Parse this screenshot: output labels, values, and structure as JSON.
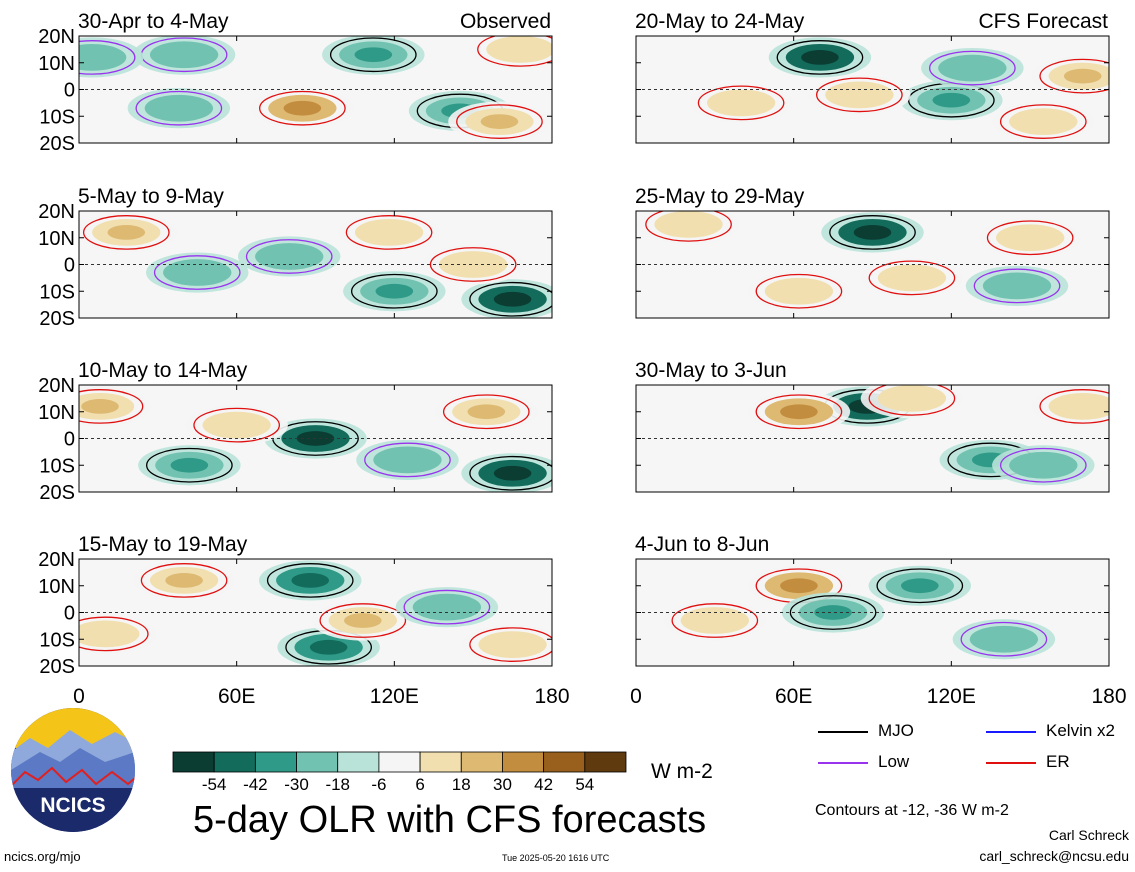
{
  "figure": {
    "title": "5-day OLR with CFS forecasts",
    "website": "ncics.org/mjo",
    "timestamp": "Tue 2025-05-20 1616 UTC",
    "author": "Carl Schreck",
    "email": "carl_schreck@ncsu.edu",
    "logo_text": "NCICS",
    "column_labels": {
      "observed": "Observed",
      "forecast": "CFS Forecast"
    }
  },
  "colorbar": {
    "units": "W m-2",
    "tick_labels": [
      "-54",
      "-42",
      "-30",
      "-18",
      "-6",
      "6",
      "18",
      "30",
      "42",
      "54"
    ],
    "colors": [
      "#0b3d33",
      "#136b5c",
      "#2e9a87",
      "#72c2b1",
      "#b9e3d9",
      "#f5f5f5",
      "#f1dfb0",
      "#ddb972",
      "#c38d3f",
      "#98601c",
      "#5e3a0e"
    ]
  },
  "legend": {
    "items": [
      {
        "label": "MJO",
        "color": "#000000"
      },
      {
        "label": "Kelvin x2",
        "color": "#1a1aff"
      },
      {
        "label": "Low",
        "color": "#9933ee"
      },
      {
        "label": "ER",
        "color": "#e01010"
      }
    ],
    "contour_note": "Contours at -12, -36 W m-2"
  },
  "chart_data": [
    {
      "type": "heatmap",
      "title": "30-Apr to 4-May",
      "label": "Observed",
      "x_ticks": [
        "0",
        "60E",
        "120E",
        "180"
      ],
      "y_ticks": [
        "20N",
        "10N",
        "0",
        "10S",
        "20S"
      ],
      "xlim": [
        0,
        180
      ],
      "ylim": [
        -20,
        20
      ],
      "anomalies": [
        {
          "lon": 85,
          "lat": -7,
          "value": 42
        },
        {
          "lon": 145,
          "lat": -8,
          "value": -36
        },
        {
          "lon": 112,
          "lat": 13,
          "value": -30
        },
        {
          "lon": 40,
          "lat": 13,
          "value": -18
        },
        {
          "lon": 38,
          "lat": -7,
          "value": -18
        },
        {
          "lon": 160,
          "lat": -12,
          "value": 30
        },
        {
          "lon": 168,
          "lat": 15,
          "value": 18
        },
        {
          "lon": 5,
          "lat": 12,
          "value": -18
        }
      ]
    },
    {
      "type": "heatmap",
      "title": "5-May to 9-May",
      "x_ticks": [
        "0",
        "60E",
        "120E",
        "180"
      ],
      "y_ticks": [
        "20N",
        "10N",
        "0",
        "10S",
        "20S"
      ],
      "xlim": [
        0,
        180
      ],
      "ylim": [
        -20,
        20
      ],
      "anomalies": [
        {
          "lon": 18,
          "lat": 12,
          "value": 30
        },
        {
          "lon": 165,
          "lat": -13,
          "value": -54
        },
        {
          "lon": 120,
          "lat": -10,
          "value": -30
        },
        {
          "lon": 80,
          "lat": 3,
          "value": -18
        },
        {
          "lon": 45,
          "lat": -3,
          "value": -18
        },
        {
          "lon": 118,
          "lat": 12,
          "value": 18
        },
        {
          "lon": 150,
          "lat": 0,
          "value": 18
        }
      ]
    },
    {
      "type": "heatmap",
      "title": "10-May to 14-May",
      "x_ticks": [
        "0",
        "60E",
        "120E",
        "180"
      ],
      "y_ticks": [
        "20N",
        "10N",
        "0",
        "10S",
        "20S"
      ],
      "xlim": [
        0,
        180
      ],
      "ylim": [
        -20,
        20
      ],
      "anomalies": [
        {
          "lon": 90,
          "lat": 0,
          "value": -54
        },
        {
          "lon": 165,
          "lat": -13,
          "value": -54
        },
        {
          "lon": 8,
          "lat": 12,
          "value": 30
        },
        {
          "lon": 155,
          "lat": 10,
          "value": 30
        },
        {
          "lon": 42,
          "lat": -10,
          "value": -30
        },
        {
          "lon": 125,
          "lat": -8,
          "value": -18
        },
        {
          "lon": 60,
          "lat": 5,
          "value": 18
        }
      ]
    },
    {
      "type": "heatmap",
      "title": "15-May to 19-May",
      "x_ticks": [
        "0",
        "60E",
        "120E",
        "180"
      ],
      "y_ticks": [
        "20N",
        "10N",
        "0",
        "10S",
        "20S"
      ],
      "xlim": [
        0,
        180
      ],
      "ylim": [
        -20,
        20
      ],
      "anomalies": [
        {
          "lon": 88,
          "lat": 12,
          "value": -42
        },
        {
          "lon": 95,
          "lat": -13,
          "value": -42
        },
        {
          "lon": 40,
          "lat": 12,
          "value": 30
        },
        {
          "lon": 108,
          "lat": -3,
          "value": 30
        },
        {
          "lon": 140,
          "lat": 2,
          "value": -18
        },
        {
          "lon": 10,
          "lat": -8,
          "value": 18
        },
        {
          "lon": 165,
          "lat": -12,
          "value": 18
        }
      ]
    },
    {
      "type": "heatmap",
      "title": "20-May to 24-May",
      "label": "CFS Forecast",
      "x_ticks": [
        "0",
        "60E",
        "120E",
        "180"
      ],
      "y_ticks": [
        "20N",
        "10N",
        "0",
        "10S",
        "20S"
      ],
      "xlim": [
        0,
        180
      ],
      "ylim": [
        -20,
        20
      ],
      "anomalies": [
        {
          "lon": 70,
          "lat": 12,
          "value": -54
        },
        {
          "lon": 120,
          "lat": -4,
          "value": -30
        },
        {
          "lon": 128,
          "lat": 8,
          "value": -18
        },
        {
          "lon": 170,
          "lat": 5,
          "value": 30
        },
        {
          "lon": 155,
          "lat": -12,
          "value": 18
        },
        {
          "lon": 40,
          "lat": -5,
          "value": 18
        },
        {
          "lon": 85,
          "lat": -2,
          "value": 18
        }
      ]
    },
    {
      "type": "heatmap",
      "title": "25-May to 29-May",
      "x_ticks": [
        "0",
        "60E",
        "120E",
        "180"
      ],
      "y_ticks": [
        "20N",
        "10N",
        "0",
        "10S",
        "20S"
      ],
      "xlim": [
        0,
        180
      ],
      "ylim": [
        -20,
        20
      ],
      "anomalies": [
        {
          "lon": 90,
          "lat": 12,
          "value": -54
        },
        {
          "lon": 105,
          "lat": -5,
          "value": 18
        },
        {
          "lon": 62,
          "lat": -10,
          "value": 18
        },
        {
          "lon": 150,
          "lat": 10,
          "value": 18
        },
        {
          "lon": 145,
          "lat": -8,
          "value": -18
        },
        {
          "lon": 20,
          "lat": 15,
          "value": 18
        }
      ]
    },
    {
      "type": "heatmap",
      "title": "30-May to 3-Jun",
      "x_ticks": [
        "0",
        "60E",
        "120E",
        "180"
      ],
      "y_ticks": [
        "20N",
        "10N",
        "0",
        "10S",
        "20S"
      ],
      "xlim": [
        0,
        180
      ],
      "ylim": [
        -20,
        20
      ],
      "anomalies": [
        {
          "lon": 88,
          "lat": 12,
          "value": -54
        },
        {
          "lon": 62,
          "lat": 10,
          "value": 42
        },
        {
          "lon": 135,
          "lat": -8,
          "value": -30
        },
        {
          "lon": 155,
          "lat": -10,
          "value": -18
        },
        {
          "lon": 105,
          "lat": 15,
          "value": 18
        },
        {
          "lon": 170,
          "lat": 12,
          "value": 18
        }
      ]
    },
    {
      "type": "heatmap",
      "title": "4-Jun to 8-Jun",
      "x_ticks": [
        "0",
        "60E",
        "120E",
        "180"
      ],
      "y_ticks": [
        "20N",
        "10N",
        "0",
        "10S",
        "20S"
      ],
      "xlim": [
        0,
        180
      ],
      "ylim": [
        -20,
        20
      ],
      "anomalies": [
        {
          "lon": 62,
          "lat": 10,
          "value": 42
        },
        {
          "lon": 75,
          "lat": 0,
          "value": -30
        },
        {
          "lon": 108,
          "lat": 10,
          "value": -30
        },
        {
          "lon": 140,
          "lat": -10,
          "value": -18
        },
        {
          "lon": 30,
          "lat": -3,
          "value": 18
        }
      ]
    }
  ]
}
